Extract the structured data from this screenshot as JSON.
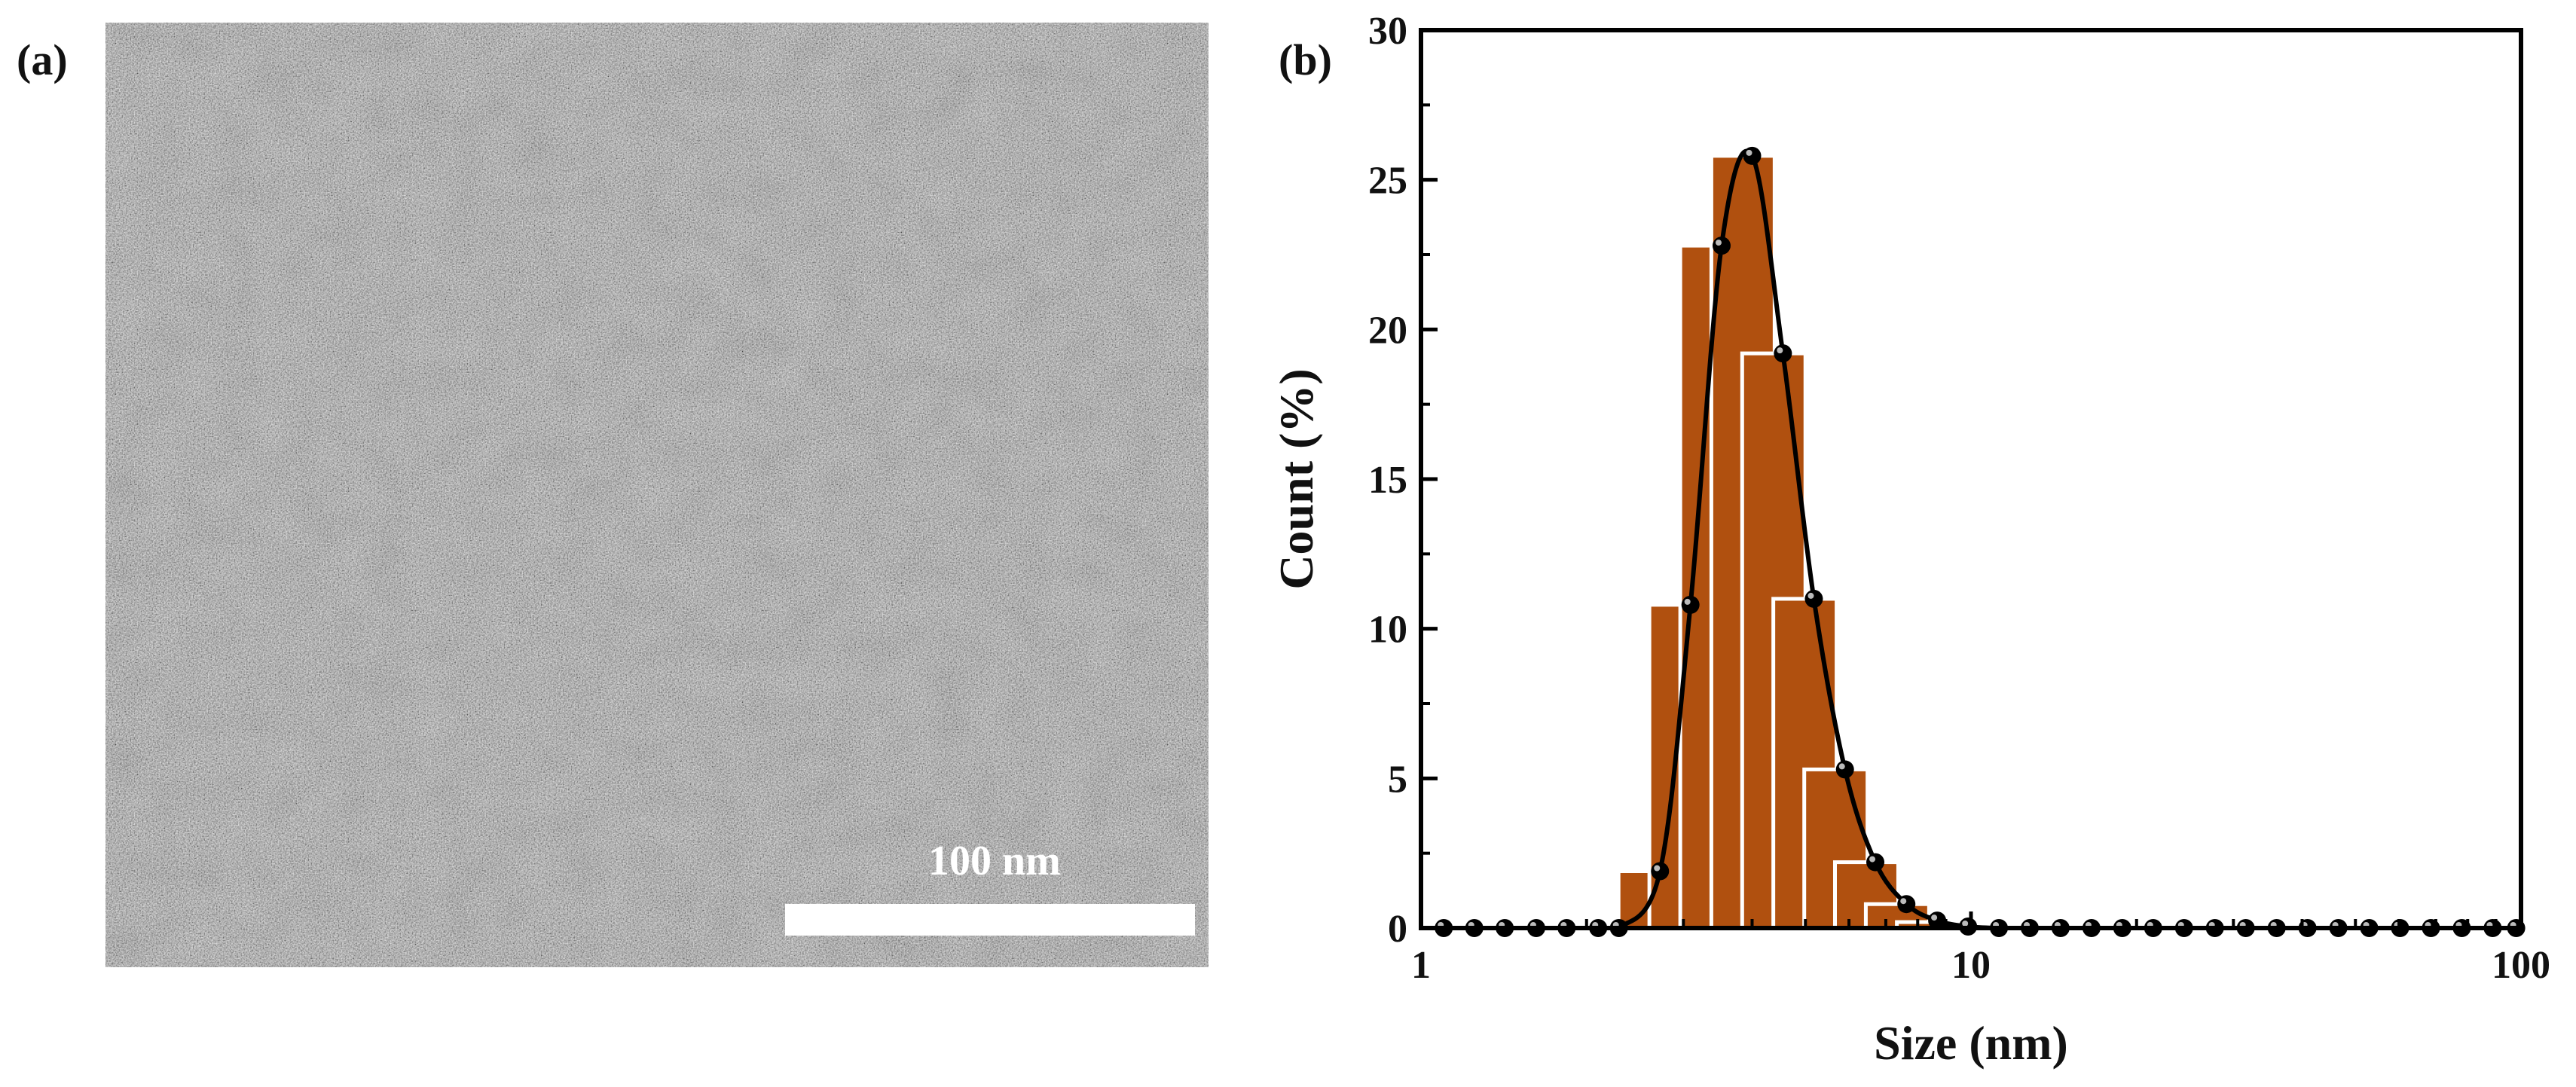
{
  "panel_a": {
    "label": "(a)",
    "scale_bar_label": "100 nm",
    "image_description_kind": "tem-micrograph"
  },
  "panel_b": {
    "label": "(b)"
  },
  "colors": {
    "bar_fill": "#b0500f",
    "bar_edge": "#ffffff",
    "fit_line": "#000000",
    "tem_background": "#7b7b7b"
  },
  "chart_data": {
    "type": "bar",
    "title": "",
    "xlabel": "Size (nm)",
    "ylabel": "Count (%)",
    "xscale": "log",
    "xlim": [
      1,
      100
    ],
    "ylim": [
      0,
      30
    ],
    "xticks": [
      "1",
      "10",
      "100"
    ],
    "yticks": [
      "0",
      "5",
      "10",
      "15",
      "20",
      "25",
      "30"
    ],
    "series": [
      {
        "name": "histogram",
        "type": "bar",
        "x": [
          2.61,
          2.97,
          3.38,
          3.85,
          4.38,
          4.99,
          5.68,
          6.46,
          7.35,
          8.37
        ],
        "values": [
          1.9,
          10.8,
          22.8,
          25.8,
          19.2,
          11.0,
          5.3,
          2.2,
          0.8,
          0.2
        ]
      },
      {
        "name": "distribution",
        "type": "line-markers",
        "x": [
          1.1,
          1.25,
          1.42,
          1.62,
          1.84,
          2.1,
          2.29,
          2.72,
          3.09,
          3.52,
          4.0,
          4.55,
          5.18,
          5.9,
          6.7,
          7.63,
          8.68,
          9.88,
          11.24,
          12.79,
          14.55,
          16.56,
          18.84,
          21.44,
          24.4,
          27.76,
          31.59,
          35.95,
          40.91,
          46.55,
          52.97,
          60.27,
          68.59,
          78.05,
          88.82,
          98.0
        ],
        "values": [
          0,
          0,
          0,
          0,
          0,
          0,
          0,
          1.9,
          10.8,
          22.8,
          25.8,
          19.2,
          11.0,
          5.3,
          2.2,
          0.8,
          0.25,
          0.05,
          0,
          0,
          0,
          0,
          0,
          0,
          0,
          0,
          0,
          0,
          0,
          0,
          0,
          0,
          0,
          0,
          0,
          0
        ]
      }
    ]
  }
}
